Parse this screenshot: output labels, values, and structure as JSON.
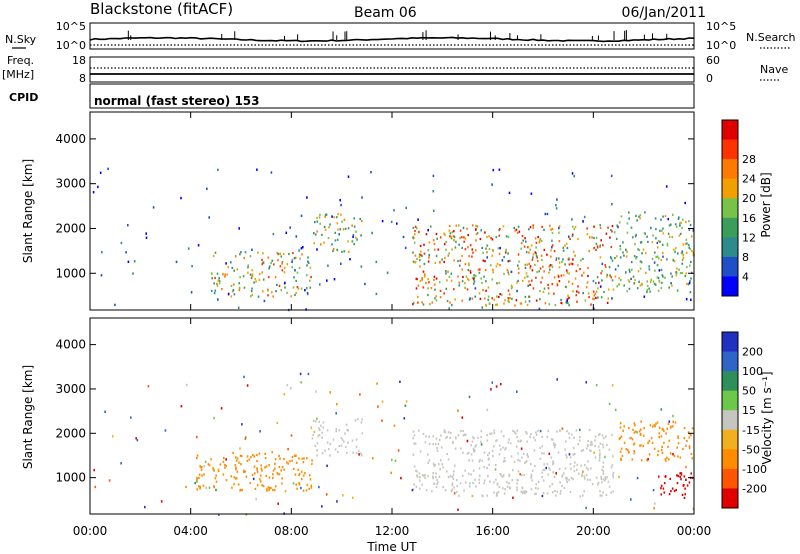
{
  "header": {
    "station": "Blackstone (fitACF)",
    "beam": "Beam 06",
    "date": "06/Jan/2011"
  },
  "status_panels": {
    "nsky_label": "N.Sky",
    "nsky_ticks": [
      "10^5",
      "10^0"
    ],
    "nsearch_label": "N.Search",
    "nsearch_ticks": [
      "10^5",
      "10^0"
    ],
    "freq_label": "Freq.",
    "freq_unit": "[MHz]",
    "freq_ticks": [
      "18",
      "8"
    ],
    "nave_label": "Nave",
    "nave_ticks": [
      "60",
      "0"
    ],
    "cpid_label": "CPID",
    "cpid_value": "normal (fast stereo) 153"
  },
  "x_axis": {
    "label": "Time UT",
    "ticks": [
      "00:00",
      "04:00",
      "08:00",
      "12:00",
      "16:00",
      "20:00",
      "00:00"
    ],
    "range_hours": [
      0,
      24
    ]
  },
  "colors": {
    "power": [
      "#0000ff",
      "#1f4fc8",
      "#2e8b8b",
      "#3a9e5a",
      "#79c24a",
      "#f0a000",
      "#ff7a00",
      "#ff3300",
      "#e00000"
    ],
    "velocity": [
      "#2030c0",
      "#2f64c8",
      "#2f8f5a",
      "#6cc84a",
      "#c6c6c0",
      "#f0b020",
      "#ff8c00",
      "#ff5500",
      "#e00000"
    ],
    "ground_scatter": "#c6c6c0"
  },
  "chart_data": [
    {
      "type": "heatmap",
      "title": "",
      "xlabel": "",
      "ylabel": "Slant Range [km]",
      "xlim_hours": [
        0,
        24
      ],
      "ylim_km": [
        180,
        4600
      ],
      "yticks": [
        "1000",
        "2000",
        "3000",
        "4000"
      ],
      "colorbar": {
        "label": "Power [dB]",
        "ticks": [
          "4",
          "8",
          "12",
          "16",
          "20",
          "24",
          "28"
        ],
        "range": [
          0,
          30
        ]
      },
      "regions": [
        {
          "t0": 4.8,
          "t1": 8.8,
          "r0": 500,
          "r1": 1500,
          "peak_db": 26
        },
        {
          "t0": 8.8,
          "t1": 10.8,
          "r0": 1500,
          "r1": 2350,
          "peak_db": 22
        },
        {
          "t0": 12.8,
          "t1": 20.8,
          "r0": 300,
          "r1": 2100,
          "peak_db": 29
        },
        {
          "t0": 20.8,
          "t1": 24.0,
          "r0": 600,
          "r1": 2400,
          "peak_db": 20
        }
      ]
    },
    {
      "type": "heatmap",
      "title": "",
      "xlabel": "Time UT",
      "ylabel": "Slant Range [km]",
      "xlim_hours": [
        0,
        24
      ],
      "ylim_km": [
        180,
        4600
      ],
      "yticks": [
        "1000",
        "2000",
        "3000",
        "4000"
      ],
      "colorbar": {
        "label": "Velocity [m s⁻¹]",
        "ticks": [
          "200",
          "100",
          "50",
          "15",
          "-15",
          "-50",
          "-100",
          "-200"
        ]
      },
      "regions": [
        {
          "t0": 4.2,
          "t1": 8.8,
          "r0": 700,
          "r1": 1600,
          "velocity_ms": -60
        },
        {
          "t0": 8.8,
          "t1": 10.8,
          "r0": 1500,
          "r1": 2350,
          "velocity_ms": 0
        },
        {
          "t0": 12.8,
          "t1": 20.8,
          "r0": 600,
          "r1": 2100,
          "velocity_ms": 0
        },
        {
          "t0": 21.0,
          "t1": 24.0,
          "r0": 1400,
          "r1": 2300,
          "velocity_ms": -40
        },
        {
          "t0": 22.5,
          "t1": 24.0,
          "r0": 550,
          "r1": 1150,
          "velocity_ms": -180
        }
      ]
    }
  ]
}
